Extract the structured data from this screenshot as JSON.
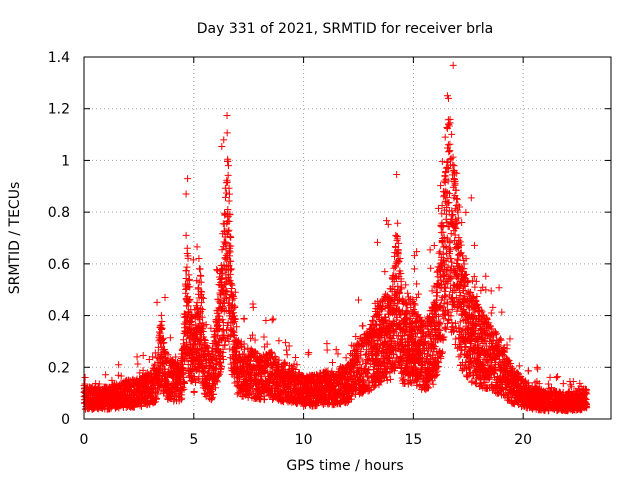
{
  "chart_data": {
    "type": "scatter",
    "title": "Day 331 of 2021, SRMTID for receiver brla",
    "xlabel": "GPS time / hours",
    "ylabel": "SRMTID / TECUs",
    "xlim": [
      0,
      24
    ],
    "ylim": [
      0,
      1.4
    ],
    "x_ticks": [
      0,
      5,
      10,
      15,
      20
    ],
    "x_tick_labels": [
      "0",
      "5",
      "10",
      "15",
      "20"
    ],
    "y_ticks": [
      0,
      0.2,
      0.4,
      0.6,
      0.8,
      1.0,
      1.2,
      1.4
    ],
    "y_tick_labels": [
      "0",
      "0.2",
      "0.4",
      "0.6",
      "0.8",
      "1",
      "1.2",
      "1.4"
    ],
    "grid": true,
    "marker": "+",
    "marker_color": "#ff0000",
    "x_range_of_data": [
      0,
      22.9
    ],
    "series": [
      {
        "name": "SRMTID",
        "profile": [
          {
            "x": 0.0,
            "y": 0.08
          },
          {
            "x": 0.5,
            "y": 0.08
          },
          {
            "x": 1.0,
            "y": 0.08
          },
          {
            "x": 1.5,
            "y": 0.09
          },
          {
            "x": 2.0,
            "y": 0.1
          },
          {
            "x": 2.5,
            "y": 0.1
          },
          {
            "x": 3.0,
            "y": 0.12
          },
          {
            "x": 3.3,
            "y": 0.15
          },
          {
            "x": 3.5,
            "y": 0.28
          },
          {
            "x": 3.7,
            "y": 0.17
          },
          {
            "x": 4.0,
            "y": 0.15
          },
          {
            "x": 4.3,
            "y": 0.14
          },
          {
            "x": 4.5,
            "y": 0.18
          },
          {
            "x": 4.7,
            "y": 0.45
          },
          {
            "x": 4.85,
            "y": 0.3
          },
          {
            "x": 5.0,
            "y": 0.22
          },
          {
            "x": 5.3,
            "y": 0.38
          },
          {
            "x": 5.5,
            "y": 0.2
          },
          {
            "x": 5.8,
            "y": 0.16
          },
          {
            "x": 6.0,
            "y": 0.25
          },
          {
            "x": 6.3,
            "y": 0.45
          },
          {
            "x": 6.55,
            "y": 0.7
          },
          {
            "x": 6.75,
            "y": 0.35
          },
          {
            "x": 7.0,
            "y": 0.2
          },
          {
            "x": 7.5,
            "y": 0.18
          },
          {
            "x": 8.0,
            "y": 0.16
          },
          {
            "x": 8.5,
            "y": 0.17
          },
          {
            "x": 9.0,
            "y": 0.15
          },
          {
            "x": 9.5,
            "y": 0.13
          },
          {
            "x": 10.0,
            "y": 0.11
          },
          {
            "x": 10.5,
            "y": 0.11
          },
          {
            "x": 11.0,
            "y": 0.12
          },
          {
            "x": 11.5,
            "y": 0.12
          },
          {
            "x": 12.0,
            "y": 0.14
          },
          {
            "x": 12.5,
            "y": 0.2
          },
          {
            "x": 13.0,
            "y": 0.23
          },
          {
            "x": 13.5,
            "y": 0.3
          },
          {
            "x": 14.0,
            "y": 0.33
          },
          {
            "x": 14.3,
            "y": 0.5
          },
          {
            "x": 14.5,
            "y": 0.3
          },
          {
            "x": 15.0,
            "y": 0.3
          },
          {
            "x": 15.5,
            "y": 0.24
          },
          {
            "x": 16.0,
            "y": 0.3
          },
          {
            "x": 16.3,
            "y": 0.55
          },
          {
            "x": 16.6,
            "y": 0.8
          },
          {
            "x": 16.9,
            "y": 0.62
          },
          {
            "x": 17.2,
            "y": 0.42
          },
          {
            "x": 17.6,
            "y": 0.32
          },
          {
            "x": 18.0,
            "y": 0.28
          },
          {
            "x": 18.5,
            "y": 0.24
          },
          {
            "x": 19.0,
            "y": 0.2
          },
          {
            "x": 19.5,
            "y": 0.13
          },
          {
            "x": 20.0,
            "y": 0.1
          },
          {
            "x": 20.5,
            "y": 0.08
          },
          {
            "x": 21.0,
            "y": 0.07
          },
          {
            "x": 21.5,
            "y": 0.07
          },
          {
            "x": 22.0,
            "y": 0.07
          },
          {
            "x": 22.5,
            "y": 0.07
          },
          {
            "x": 22.9,
            "y": 0.08
          }
        ],
        "peaks": [
          {
            "x": 4.65,
            "y": 0.87
          },
          {
            "x": 4.65,
            "y": 0.71
          },
          {
            "x": 4.8,
            "y": 0.54
          },
          {
            "x": 6.55,
            "y": 0.81
          },
          {
            "x": 6.65,
            "y": 0.79
          },
          {
            "x": 6.6,
            "y": 0.73
          },
          {
            "x": 6.5,
            "y": 0.53
          },
          {
            "x": 3.55,
            "y": 0.35
          },
          {
            "x": 5.35,
            "y": 0.45
          },
          {
            "x": 12.5,
            "y": 0.46
          },
          {
            "x": 13.7,
            "y": 0.57
          },
          {
            "x": 14.2,
            "y": 0.71
          },
          {
            "x": 14.25,
            "y": 0.69
          },
          {
            "x": 14.3,
            "y": 0.65
          },
          {
            "x": 14.85,
            "y": 0.46
          },
          {
            "x": 15.15,
            "y": 0.47
          },
          {
            "x": 16.55,
            "y": 1.25
          },
          {
            "x": 16.6,
            "y": 1.24
          },
          {
            "x": 16.45,
            "y": 1.09
          },
          {
            "x": 16.6,
            "y": 1.14
          },
          {
            "x": 16.5,
            "y": 0.97
          },
          {
            "x": 16.4,
            "y": 0.92
          },
          {
            "x": 16.9,
            "y": 0.91
          },
          {
            "x": 17.0,
            "y": 0.85
          },
          {
            "x": 17.1,
            "y": 0.82
          },
          {
            "x": 17.2,
            "y": 0.76
          },
          {
            "x": 17.4,
            "y": 0.62
          },
          {
            "x": 17.8,
            "y": 0.51
          },
          {
            "x": 18.3,
            "y": 0.5
          },
          {
            "x": 18.55,
            "y": 0.41
          },
          {
            "x": 19.4,
            "y": 0.31
          },
          {
            "x": 12.0,
            "y": 0.2
          }
        ]
      }
    ]
  }
}
